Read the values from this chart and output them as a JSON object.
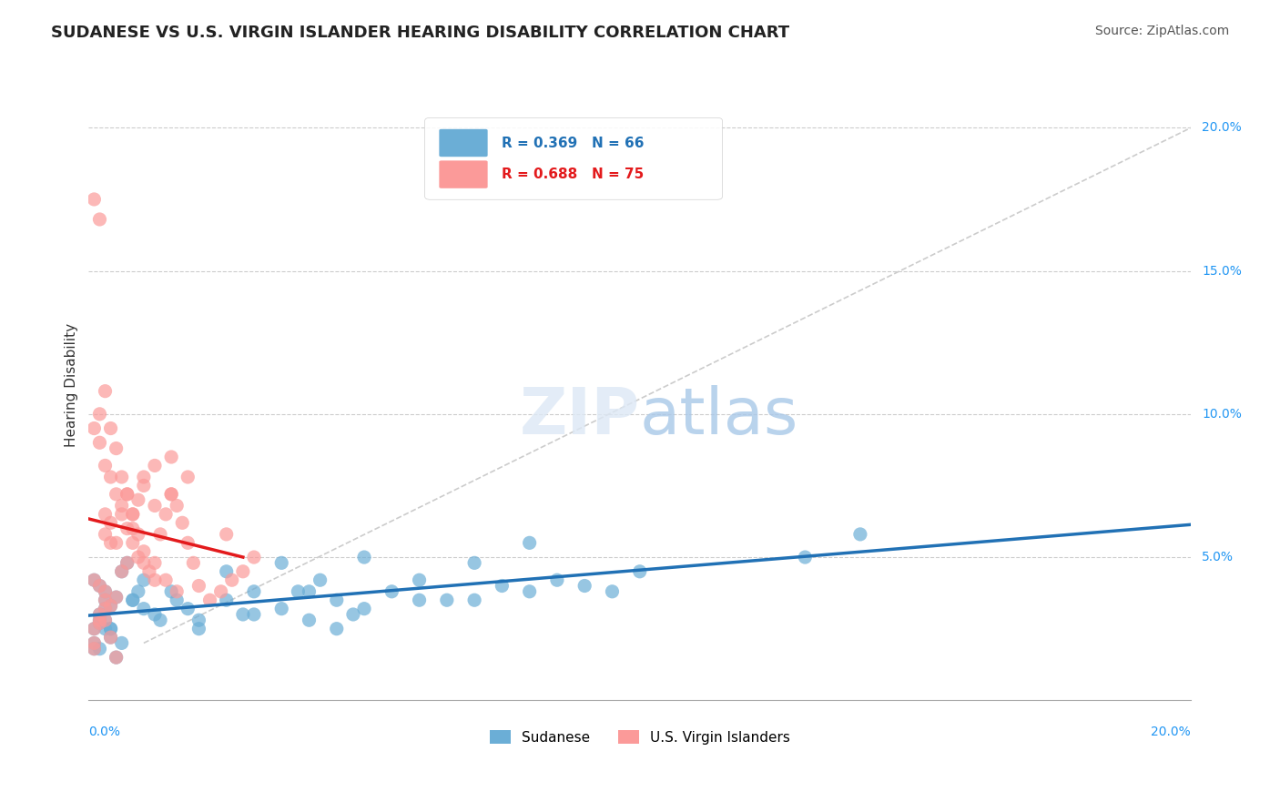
{
  "title": "SUDANESE VS U.S. VIRGIN ISLANDER HEARING DISABILITY CORRELATION CHART",
  "source": "Source: ZipAtlas.com",
  "ylabel": "Hearing Disability",
  "xlim": [
    0,
    0.2
  ],
  "ylim": [
    0,
    0.22
  ],
  "blue_R": 0.369,
  "blue_N": 66,
  "pink_R": 0.688,
  "pink_N": 75,
  "blue_color": "#6baed6",
  "pink_color": "#fb9a99",
  "blue_line_color": "#2171b5",
  "pink_line_color": "#e31a1c",
  "legend_label_blue": "Sudanese",
  "legend_label_pink": "U.S. Virgin Islanders",
  "blue_scatter_x": [
    0.001,
    0.002,
    0.001,
    0.003,
    0.002,
    0.001,
    0.004,
    0.003,
    0.002,
    0.005,
    0.003,
    0.002,
    0.004,
    0.001,
    0.003,
    0.006,
    0.005,
    0.004,
    0.007,
    0.008,
    0.003,
    0.009,
    0.01,
    0.012,
    0.015,
    0.018,
    0.02,
    0.025,
    0.028,
    0.03,
    0.035,
    0.038,
    0.04,
    0.042,
    0.045,
    0.048,
    0.05,
    0.055,
    0.06,
    0.065,
    0.07,
    0.075,
    0.08,
    0.085,
    0.09,
    0.095,
    0.1,
    0.002,
    0.004,
    0.006,
    0.008,
    0.01,
    0.013,
    0.016,
    0.02,
    0.025,
    0.03,
    0.035,
    0.04,
    0.045,
    0.05,
    0.06,
    0.07,
    0.08,
    0.13,
    0.14
  ],
  "blue_scatter_y": [
    0.025,
    0.03,
    0.02,
    0.035,
    0.028,
    0.018,
    0.022,
    0.032,
    0.04,
    0.015,
    0.038,
    0.027,
    0.033,
    0.042,
    0.028,
    0.045,
    0.036,
    0.025,
    0.048,
    0.035,
    0.025,
    0.038,
    0.042,
    0.03,
    0.038,
    0.032,
    0.028,
    0.035,
    0.03,
    0.038,
    0.032,
    0.038,
    0.028,
    0.042,
    0.035,
    0.03,
    0.032,
    0.038,
    0.042,
    0.035,
    0.035,
    0.04,
    0.038,
    0.042,
    0.04,
    0.038,
    0.045,
    0.018,
    0.025,
    0.02,
    0.035,
    0.032,
    0.028,
    0.035,
    0.025,
    0.045,
    0.03,
    0.048,
    0.038,
    0.025,
    0.05,
    0.035,
    0.048,
    0.055,
    0.05,
    0.058
  ],
  "pink_scatter_x": [
    0.001,
    0.002,
    0.001,
    0.003,
    0.002,
    0.001,
    0.004,
    0.003,
    0.002,
    0.005,
    0.003,
    0.002,
    0.004,
    0.001,
    0.003,
    0.006,
    0.005,
    0.004,
    0.007,
    0.008,
    0.003,
    0.009,
    0.01,
    0.012,
    0.015,
    0.018,
    0.003,
    0.004,
    0.005,
    0.006,
    0.007,
    0.008,
    0.01,
    0.012,
    0.015,
    0.002,
    0.001,
    0.003,
    0.004,
    0.005,
    0.006,
    0.007,
    0.008,
    0.009,
    0.01,
    0.011,
    0.012,
    0.013,
    0.014,
    0.015,
    0.016,
    0.017,
    0.018,
    0.019,
    0.02,
    0.022,
    0.024,
    0.026,
    0.028,
    0.03,
    0.002,
    0.003,
    0.004,
    0.005,
    0.006,
    0.007,
    0.008,
    0.009,
    0.01,
    0.012,
    0.014,
    0.016,
    0.001,
    0.002,
    0.025
  ],
  "pink_scatter_y": [
    0.025,
    0.03,
    0.02,
    0.035,
    0.028,
    0.018,
    0.022,
    0.032,
    0.04,
    0.015,
    0.038,
    0.027,
    0.033,
    0.042,
    0.028,
    0.045,
    0.036,
    0.055,
    0.048,
    0.06,
    0.065,
    0.07,
    0.075,
    0.068,
    0.072,
    0.078,
    0.058,
    0.062,
    0.055,
    0.068,
    0.072,
    0.065,
    0.078,
    0.082,
    0.085,
    0.09,
    0.095,
    0.082,
    0.078,
    0.072,
    0.065,
    0.06,
    0.055,
    0.05,
    0.048,
    0.045,
    0.042,
    0.058,
    0.065,
    0.072,
    0.068,
    0.062,
    0.055,
    0.048,
    0.04,
    0.035,
    0.038,
    0.042,
    0.045,
    0.05,
    0.1,
    0.108,
    0.095,
    0.088,
    0.078,
    0.072,
    0.065,
    0.058,
    0.052,
    0.048,
    0.042,
    0.038,
    0.175,
    0.168,
    0.058
  ]
}
